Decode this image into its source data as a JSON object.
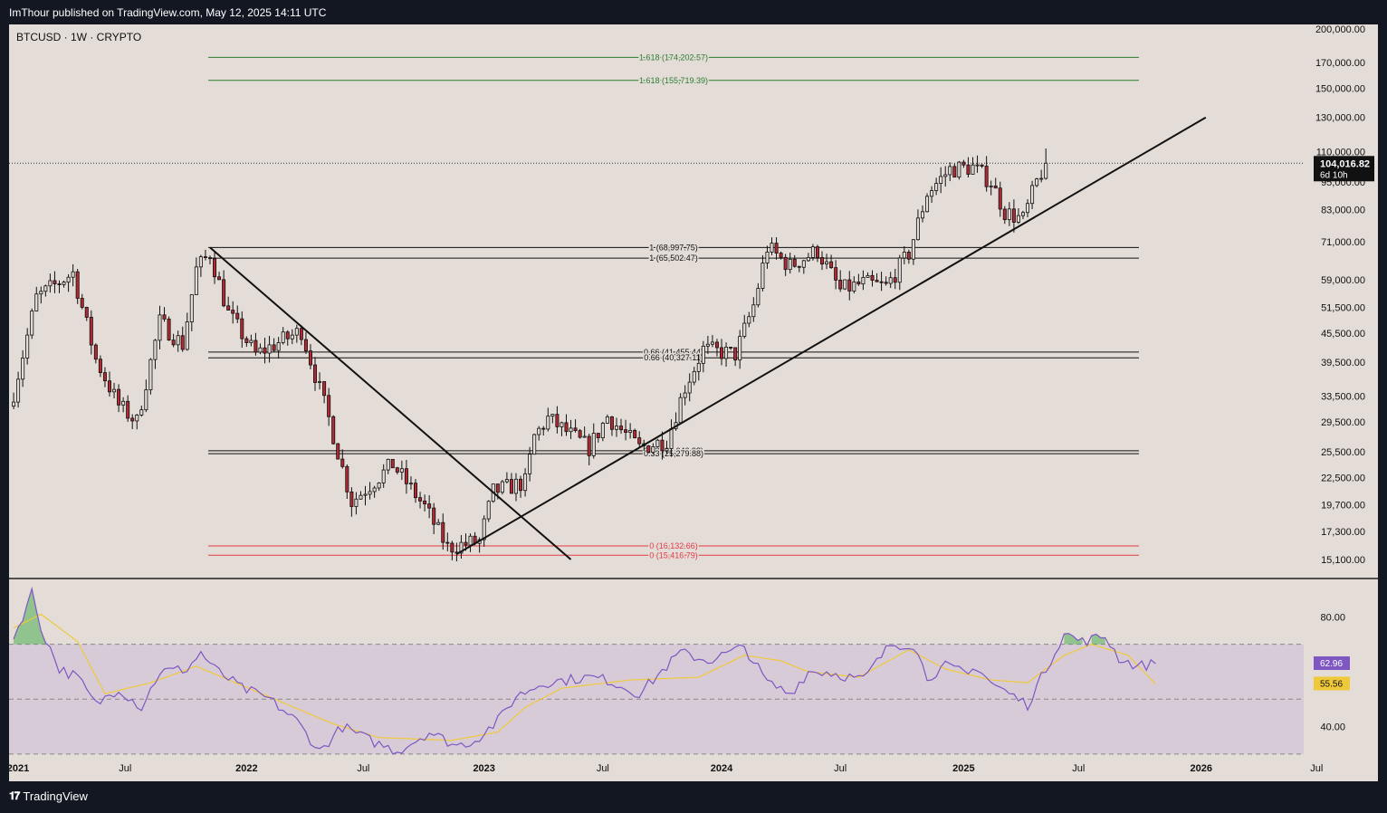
{
  "header": {
    "published": "ImThour published on TradingView.com, May 12, 2025 14:11 UTC"
  },
  "symbol": {
    "label": "BTCUSD · 1W · CRYPTO"
  },
  "footer": {
    "brand": "TradingView",
    "logo_glyph": "𝟏𝟕"
  },
  "colors": {
    "up": "#e3dcd7",
    "down": "#b22833",
    "wick": "#111111",
    "fib_green": "#2e7d32",
    "fib_red": "#e53945",
    "rsi": "#7e57c2",
    "rsi_ma": "#f0c93a",
    "rsi_band": "#d4c5d8"
  },
  "chart_data": [
    {
      "type": "candlestick",
      "symbol": "BTCUSD",
      "interval": "1W",
      "scale": "log",
      "ylim": [
        14500,
        205000
      ],
      "price_axis_ticks": [
        "200,000.00",
        "170,000.00",
        "150,000.00",
        "130,000.00",
        "110,000.00",
        "95,000.00",
        "83,000.00",
        "71,000.00",
        "59,000.00",
        "51,500.00",
        "45,500.00",
        "39,500.00",
        "33,500.00",
        "29,500.00",
        "25,500.00",
        "22,500.00",
        "19,700.00",
        "17,300.00",
        "15,100.00"
      ],
      "time_axis_ticks": [
        "2021",
        "Jul",
        "2022",
        "Jul",
        "2023",
        "Jul",
        "2024",
        "Jul",
        "2025",
        "Jul",
        "2026",
        "Jul"
      ],
      "last_price": {
        "value": "104,016.82",
        "countdown": "6d 10h"
      },
      "anchors": [
        [
          "2021-01-11",
          34000
        ],
        [
          "2021-02-15",
          54000
        ],
        [
          "2021-04-12",
          61000
        ],
        [
          "2021-05-17",
          40000
        ],
        [
          "2021-06-21",
          32000
        ],
        [
          "2021-07-19",
          29500
        ],
        [
          "2021-08-23",
          48000
        ],
        [
          "2021-09-27",
          43000
        ],
        [
          "2021-10-18",
          62000
        ],
        [
          "2021-11-08",
          67000
        ],
        [
          "2021-12-06",
          50000
        ],
        [
          "2022-01-17",
          41000
        ],
        [
          "2022-03-28",
          46000
        ],
        [
          "2022-05-09",
          30000
        ],
        [
          "2022-06-13",
          20000
        ],
        [
          "2022-08-15",
          24000
        ],
        [
          "2022-10-03",
          19500
        ],
        [
          "2022-11-07",
          16000
        ],
        [
          "2022-12-26",
          16500
        ],
        [
          "2023-01-16",
          21000
        ],
        [
          "2023-03-06",
          22000
        ],
        [
          "2023-03-20",
          27500
        ],
        [
          "2023-04-10",
          30000
        ],
        [
          "2023-06-12",
          26000
        ],
        [
          "2023-07-10",
          30300
        ],
        [
          "2023-08-28",
          26000
        ],
        [
          "2023-10-09",
          27000
        ],
        [
          "2023-11-06",
          35000
        ],
        [
          "2023-12-04",
          42000
        ],
        [
          "2024-01-22",
          41000
        ],
        [
          "2024-02-19",
          52000
        ],
        [
          "2024-03-11",
          69000
        ],
        [
          "2024-04-15",
          63000
        ],
        [
          "2024-05-27",
          68000
        ],
        [
          "2024-07-01",
          56000
        ],
        [
          "2024-08-05",
          58000
        ],
        [
          "2024-09-09",
          57000
        ],
        [
          "2024-10-14",
          67000
        ],
        [
          "2024-11-11",
          90000
        ],
        [
          "2024-12-16",
          101000
        ],
        [
          "2025-01-20",
          102000
        ],
        [
          "2025-02-17",
          95000
        ],
        [
          "2025-03-10",
          82000
        ],
        [
          "2025-04-07",
          79000
        ],
        [
          "2025-04-28",
          95000
        ],
        [
          "2025-05-12",
          104016.82
        ]
      ],
      "fib_levels": [
        {
          "label": "1.618 (174,202.57)",
          "value": 174202.57,
          "color": "#2e7d32"
        },
        {
          "label": "1.618 (155,719.39)",
          "value": 155719.39,
          "color": "#2e7d32"
        },
        {
          "label": "1 (68,997.75)",
          "value": 68997.75,
          "color": "#111111"
        },
        {
          "label": "1 (65,502.47)",
          "value": 65502.47,
          "color": "#111111"
        },
        {
          "label": "0.66 (41,455.44)",
          "value": 41455.44,
          "color": "#111111"
        },
        {
          "label": "0.66 (40,327.11)",
          "value": 40327.11,
          "color": "#111111"
        },
        {
          "label": "0.33 (25,646.98)",
          "value": 25646.98,
          "color": "#111111"
        },
        {
          "label": "0.33 (25,279.88)",
          "value": 25279.88,
          "color": "#111111"
        },
        {
          "label": "0 (16,132.66)",
          "value": 16132.66,
          "color": "#e53945"
        },
        {
          "label": "0 (15,416.79)",
          "value": 15416.79,
          "color": "#e53945"
        }
      ],
      "trendlines": [
        {
          "name": "downtrend",
          "from": [
            "2021-11-08",
            69000
          ],
          "to": [
            "2023-05-15",
            15100
          ]
        },
        {
          "name": "uptrend",
          "from": [
            "2022-11-21",
            15500
          ],
          "to": [
            "2026-01-12",
            130000
          ]
        }
      ]
    },
    {
      "type": "line",
      "indicator": "RSI",
      "ylim": [
        26,
        93
      ],
      "bands": [
        70,
        50,
        30
      ],
      "y_ticks": [
        "80.00",
        "40.00"
      ],
      "values_label": {
        "rsi": "62.96",
        "ma": "55.56"
      },
      "rsi_anchors": [
        [
          0,
          72
        ],
        [
          4,
          89
        ],
        [
          6,
          76
        ],
        [
          10,
          61
        ],
        [
          14,
          58
        ],
        [
          18,
          48
        ],
        [
          23,
          54
        ],
        [
          28,
          47
        ],
        [
          32,
          60
        ],
        [
          38,
          61
        ],
        [
          41,
          67
        ],
        [
          44,
          61
        ],
        [
          50,
          54
        ],
        [
          56,
          50
        ],
        [
          62,
          42
        ],
        [
          67,
          31
        ],
        [
          72,
          40
        ],
        [
          78,
          35
        ],
        [
          84,
          31
        ],
        [
          91,
          38
        ],
        [
          97,
          33
        ],
        [
          101,
          35
        ],
        [
          106,
          42
        ],
        [
          110,
          51
        ],
        [
          116,
          56
        ],
        [
          126,
          58
        ],
        [
          130,
          57
        ],
        [
          137,
          52
        ],
        [
          146,
          67
        ],
        [
          152,
          64
        ],
        [
          160,
          69
        ],
        [
          165,
          56
        ],
        [
          170,
          52
        ],
        [
          174,
          60
        ],
        [
          178,
          60
        ],
        [
          186,
          57
        ],
        [
          192,
          70
        ],
        [
          197,
          70
        ],
        [
          200,
          58
        ],
        [
          204,
          62
        ],
        [
          209,
          59
        ],
        [
          211,
          62
        ],
        [
          214,
          56
        ],
        [
          218,
          52
        ],
        [
          222,
          48
        ],
        [
          230,
          74
        ],
        [
          234,
          71
        ],
        [
          239,
          73
        ],
        [
          242,
          65
        ],
        [
          246,
          62
        ],
        [
          250,
          62.96
        ]
      ],
      "ma_anchors": [
        [
          0,
          76
        ],
        [
          6,
          81
        ],
        [
          14,
          71
        ],
        [
          20,
          52
        ],
        [
          30,
          56
        ],
        [
          40,
          62
        ],
        [
          50,
          55
        ],
        [
          60,
          48
        ],
        [
          70,
          41
        ],
        [
          80,
          36
        ],
        [
          96,
          35
        ],
        [
          106,
          38
        ],
        [
          112,
          47
        ],
        [
          120,
          54
        ],
        [
          135,
          57
        ],
        [
          150,
          58
        ],
        [
          160,
          66
        ],
        [
          168,
          64
        ],
        [
          174,
          60
        ],
        [
          185,
          58
        ],
        [
          196,
          68
        ],
        [
          204,
          61
        ],
        [
          214,
          57
        ],
        [
          222,
          56
        ],
        [
          230,
          66
        ],
        [
          236,
          70
        ],
        [
          244,
          66
        ],
        [
          250,
          55.56
        ]
      ]
    }
  ]
}
